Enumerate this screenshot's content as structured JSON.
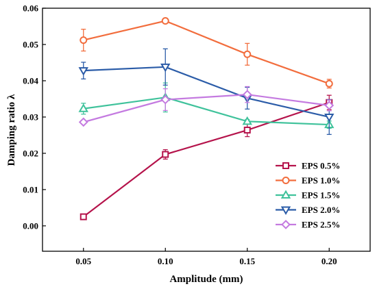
{
  "chart_data": {
    "type": "line",
    "xlabel": "Amplitude (mm)",
    "ylabel": "Damping ratio λ",
    "x": [
      0.05,
      0.1,
      0.15,
      0.2
    ],
    "x_tick_labels": [
      "0.05",
      "0.10",
      "0.15",
      "0.20"
    ],
    "xlim": [
      0.025,
      0.225
    ],
    "ylim": [
      -0.007,
      0.06
    ],
    "y_ticks": [
      0.0,
      0.01,
      0.02,
      0.03,
      0.04,
      0.05,
      0.06
    ],
    "y_tick_labels": [
      "0.00",
      "0.01",
      "0.02",
      "0.03",
      "0.04",
      "0.05",
      "0.06"
    ],
    "grid": false,
    "legend_position": "bottom-right",
    "series": [
      {
        "name": "EPS 0.5%",
        "marker": "square",
        "color": "#b5134b",
        "values": [
          0.0025,
          0.0197,
          0.0264,
          0.034
        ],
        "errors": [
          0.0005,
          0.0013,
          0.0018,
          0.002
        ]
      },
      {
        "name": "EPS 1.0%",
        "marker": "circle",
        "color": "#f26d3d",
        "values": [
          0.0512,
          0.0565,
          0.0473,
          0.0392
        ],
        "errors": [
          0.003,
          0.0006,
          0.003,
          0.0012
        ]
      },
      {
        "name": "EPS 1.5%",
        "marker": "triangle-up",
        "color": "#3fc29b",
        "values": [
          0.0323,
          0.0354,
          0.0288,
          0.0279
        ],
        "errors": [
          0.0015,
          0.004,
          0.0005,
          0.001
        ]
      },
      {
        "name": "EPS 2.0%",
        "marker": "triangle-down",
        "color": "#2b5ca8",
        "values": [
          0.0428,
          0.0438,
          0.0352,
          0.03
        ],
        "errors": [
          0.0023,
          0.005,
          0.003,
          0.0048
        ]
      },
      {
        "name": "EPS 2.5%",
        "marker": "diamond",
        "color": "#c47ae0",
        "values": [
          0.0286,
          0.0348,
          0.0362,
          0.0332
        ],
        "errors": [
          0.0005,
          0.003,
          0.0022,
          0.0015
        ]
      }
    ]
  }
}
